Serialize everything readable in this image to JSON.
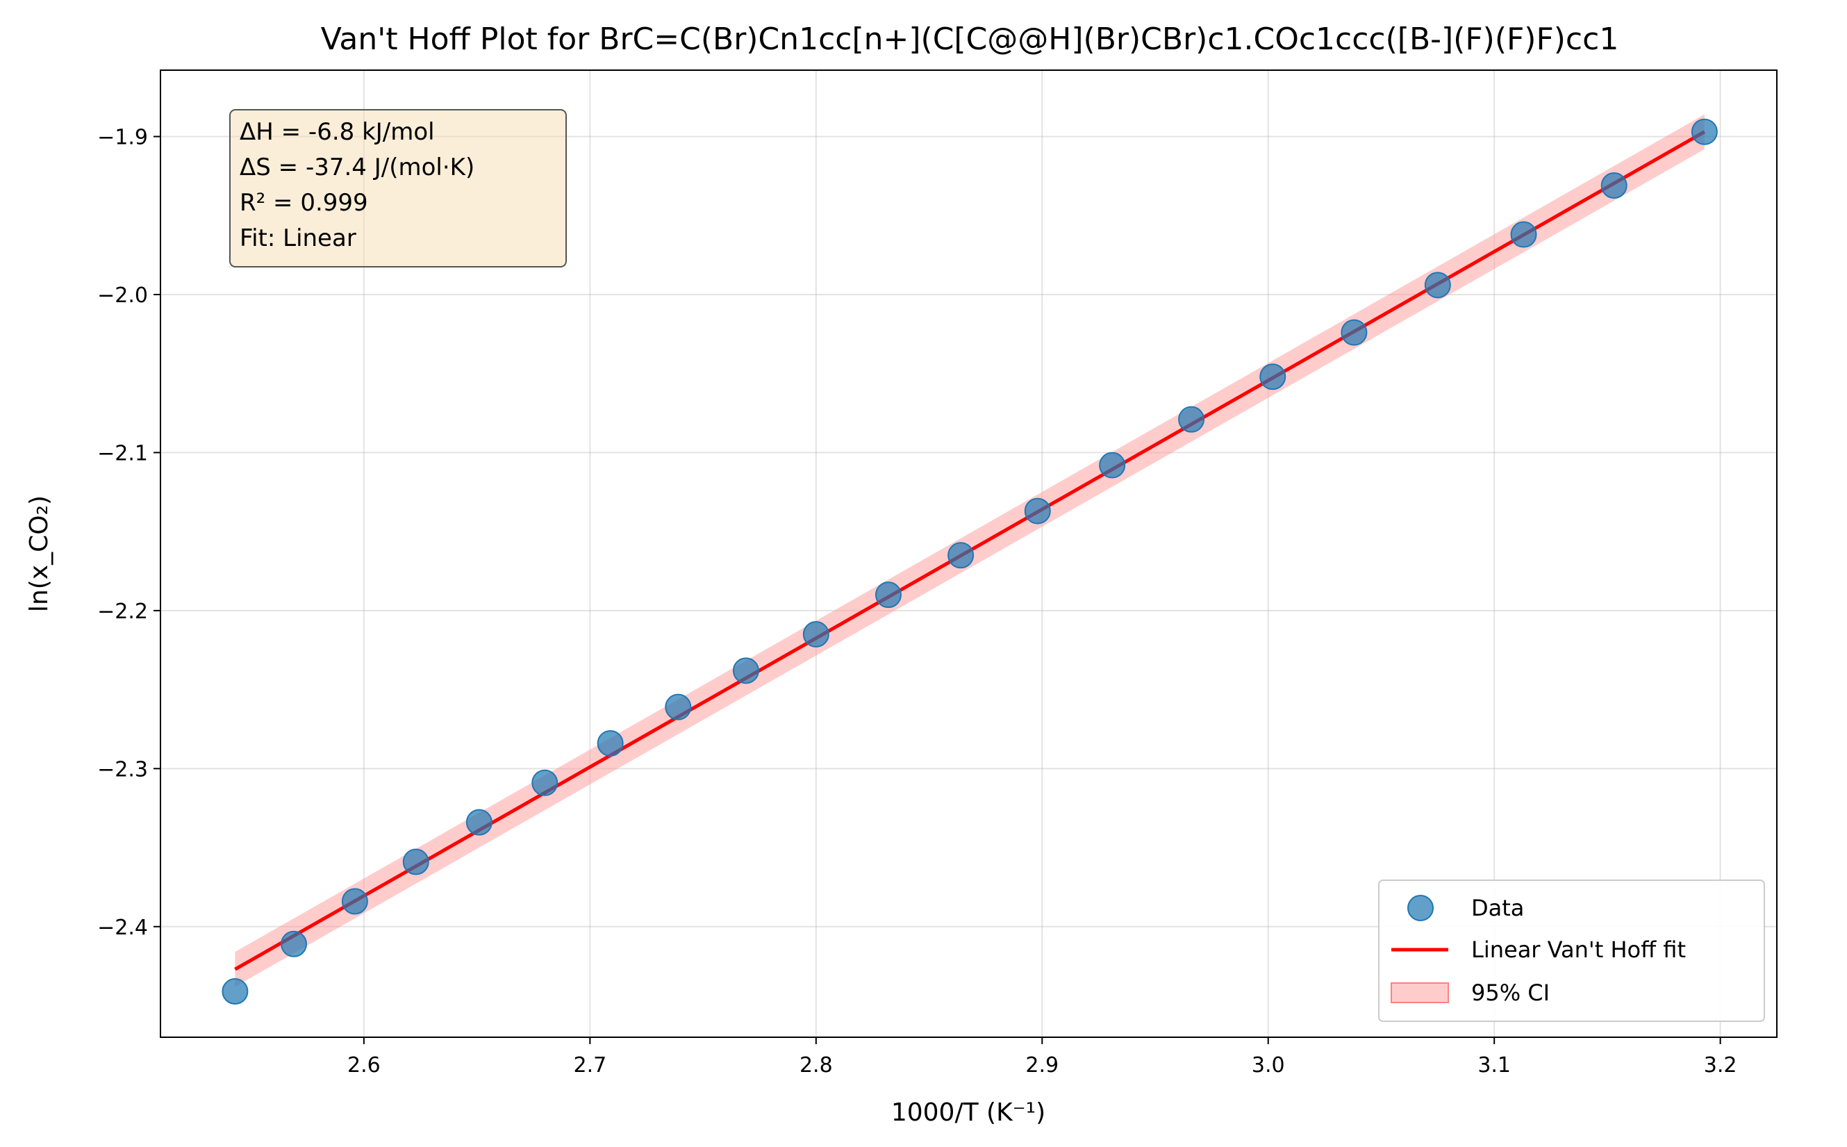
{
  "chart_data": {
    "type": "scatter",
    "title": "Van't Hoff Plot for BrC=C(Br)Cn1cc[n+](C[C@@H](Br)CBr)c1.COc1ccc([B-](F)(F)F)cc1",
    "xlabel": "1000/T (K⁻¹)",
    "ylabel": "ln(x_CO₂)",
    "xlim": [
      2.51,
      3.225
    ],
    "ylim": [
      -2.47,
      -1.858
    ],
    "xticks": [
      2.6,
      2.7,
      2.8,
      2.9,
      3.0,
      3.1,
      3.2
    ],
    "xtick_labels": [
      "2.6",
      "2.7",
      "2.8",
      "2.9",
      "3.0",
      "3.1",
      "3.2"
    ],
    "yticks": [
      -2.4,
      -2.3,
      -2.2,
      -2.1,
      -2.0,
      -1.9
    ],
    "ytick_labels": [
      "−2.4",
      "−2.3",
      "−2.2",
      "−2.1",
      "−2.0",
      "−1.9"
    ],
    "grid": true,
    "legend_position": "lower-right",
    "series": [
      {
        "name": "Data",
        "kind": "scatter",
        "color": "#1f77b4",
        "x": [
          2.543,
          2.569,
          2.596,
          2.623,
          2.651,
          2.68,
          2.709,
          2.739,
          2.769,
          2.8,
          2.832,
          2.864,
          2.898,
          2.931,
          2.966,
          3.002,
          3.038,
          3.075,
          3.113,
          3.153,
          3.193
        ],
        "y": [
          -2.441,
          -2.411,
          -2.384,
          -2.359,
          -2.334,
          -2.309,
          -2.284,
          -2.261,
          -2.238,
          -2.215,
          -2.19,
          -2.165,
          -2.137,
          -2.108,
          -2.079,
          -2.052,
          -2.024,
          -1.994,
          -1.962,
          -1.931,
          -1.897
        ]
      },
      {
        "name": "Linear Van't Hoff fit",
        "kind": "line",
        "color": "#ff0000",
        "x": [
          2.543,
          3.193
        ],
        "y": [
          -2.427,
          -1.897
        ]
      },
      {
        "name": "95% CI",
        "kind": "band",
        "color": "#ff9999",
        "x": [
          2.543,
          3.193
        ],
        "y_lower": [
          -2.438,
          -1.908
        ],
        "y_upper": [
          -2.416,
          -1.886
        ]
      }
    ],
    "annotation": {
      "lines": [
        "ΔH = -6.8 kJ/mol",
        "ΔS = -37.4 J/(mol·K)",
        "R² = 0.999",
        "Fit: Linear"
      ],
      "position": "top-left"
    }
  }
}
